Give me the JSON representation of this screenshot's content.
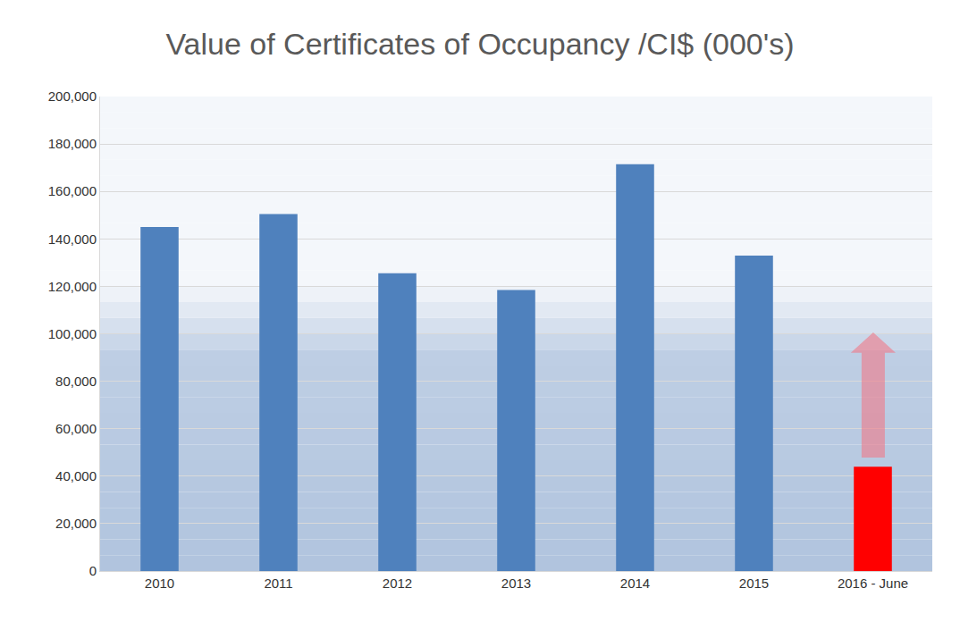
{
  "chart_data": {
    "type": "bar",
    "title": "Value of Certificates of Occupancy /CI$ (000's)",
    "categories": [
      "2010",
      "2011",
      "2012",
      "2013",
      "2014",
      "2015",
      "2016 - June"
    ],
    "values": [
      145000,
      150500,
      125500,
      118500,
      171500,
      133000,
      44000
    ],
    "colors": [
      "#4f81bd",
      "#4f81bd",
      "#4f81bd",
      "#4f81bd",
      "#4f81bd",
      "#4f81bd",
      "#ff0000"
    ],
    "ylim": [
      0,
      200000
    ],
    "yticks": [
      0,
      {
        "value": 20000,
        "label": "20,000"
      },
      {
        "value": 40000,
        "label": "40,000"
      },
      {
        "value": 60000,
        "label": "60,000"
      },
      {
        "value": 80000,
        "label": "80,000"
      },
      {
        "value": 100000,
        "label": "100,000"
      },
      {
        "value": 120000,
        "label": "120,000"
      },
      {
        "value": 140000,
        "label": "140,000"
      },
      {
        "value": 160000,
        "label": "160,000"
      },
      {
        "value": 180000,
        "label": "180,000"
      },
      {
        "value": 200000,
        "label": "200,000"
      }
    ],
    "grid": true
  }
}
